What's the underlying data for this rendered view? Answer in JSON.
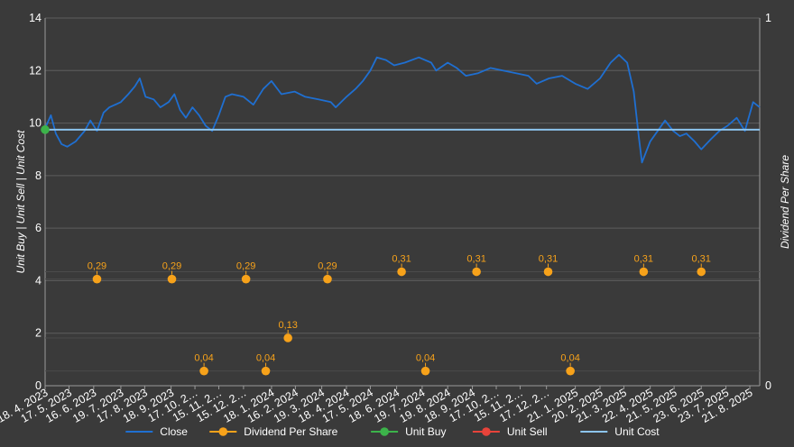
{
  "chart_data": {
    "type": "line",
    "xlabel": "",
    "ylabel": "Unit Buy | Unit Sell | Unit Cost",
    "y2label": "Dividend Per Share",
    "ylim": [
      0,
      14
    ],
    "y_ticks": [
      0,
      2,
      4,
      6,
      8,
      10,
      12,
      14
    ],
    "y2lim": [
      0,
      1
    ],
    "y2_ticks": [
      0,
      1
    ],
    "x_range": [
      "2023-04-18",
      "2025-09-02"
    ],
    "x_tick_labels": [
      "18. 4. 2023",
      "17. 5. 2023",
      "16. 6. 2023",
      "19. 7. 2023",
      "17. 8. 2023",
      "18. 9. 2023",
      "17. 10. 2…",
      "15. 11. 2…",
      "15. 12. 2…",
      "18. 1. 2024",
      "16. 2. 2024",
      "19. 3. 2024",
      "18. 4. 2024",
      "17. 5. 2024",
      "18. 6. 2024",
      "19. 7. 2024",
      "19. 8. 2024",
      "18. 9. 2024",
      "17. 10. 2…",
      "15. 11. 2…",
      "17. 12. 2…",
      "21. 1. 2025",
      "20. 2. 2025",
      "21. 3. 2025",
      "22. 4. 2025",
      "21. 5. 2025",
      "23. 6. 2025",
      "23. 7. 2025",
      "21. 8. 2025"
    ],
    "x_tick_dates": [
      "2023-04-18",
      "2023-05-17",
      "2023-06-16",
      "2023-07-19",
      "2023-08-17",
      "2023-09-18",
      "2023-10-17",
      "2023-11-15",
      "2023-12-15",
      "2024-01-18",
      "2024-02-16",
      "2024-03-19",
      "2024-04-18",
      "2024-05-17",
      "2024-06-18",
      "2024-07-19",
      "2024-08-19",
      "2024-09-18",
      "2024-10-17",
      "2024-11-15",
      "2024-12-17",
      "2025-01-21",
      "2025-02-20",
      "2025-03-21",
      "2025-04-22",
      "2025-05-21",
      "2025-06-23",
      "2025-07-23",
      "2025-08-21"
    ],
    "grid": true,
    "legend_position": "bottom",
    "series": [
      {
        "name": "Close",
        "color": "#1f6fd1",
        "points": [
          [
            "2023-04-18",
            9.8
          ],
          [
            "2023-04-25",
            10.3
          ],
          [
            "2023-05-01",
            9.6
          ],
          [
            "2023-05-08",
            9.2
          ],
          [
            "2023-05-15",
            9.1
          ],
          [
            "2023-05-25",
            9.3
          ],
          [
            "2023-06-05",
            9.7
          ],
          [
            "2023-06-12",
            10.1
          ],
          [
            "2023-06-20",
            9.7
          ],
          [
            "2023-06-28",
            10.4
          ],
          [
            "2023-07-05",
            10.6
          ],
          [
            "2023-07-19",
            10.8
          ],
          [
            "2023-07-28",
            11.1
          ],
          [
            "2023-08-05",
            11.4
          ],
          [
            "2023-08-11",
            11.7
          ],
          [
            "2023-08-18",
            11.0
          ],
          [
            "2023-08-28",
            10.9
          ],
          [
            "2023-09-05",
            10.6
          ],
          [
            "2023-09-15",
            10.8
          ],
          [
            "2023-09-22",
            11.1
          ],
          [
            "2023-09-29",
            10.5
          ],
          [
            "2023-10-06",
            10.2
          ],
          [
            "2023-10-14",
            10.6
          ],
          [
            "2023-10-22",
            10.3
          ],
          [
            "2023-10-30",
            9.9
          ],
          [
            "2023-11-07",
            9.7
          ],
          [
            "2023-11-15",
            10.3
          ],
          [
            "2023-11-23",
            11.0
          ],
          [
            "2023-12-01",
            11.1
          ],
          [
            "2023-12-15",
            11.0
          ],
          [
            "2023-12-27",
            10.7
          ],
          [
            "2024-01-08",
            11.3
          ],
          [
            "2024-01-18",
            11.6
          ],
          [
            "2024-01-30",
            11.1
          ],
          [
            "2024-02-15",
            11.2
          ],
          [
            "2024-02-28",
            11.0
          ],
          [
            "2024-03-15",
            10.9
          ],
          [
            "2024-03-30",
            10.8
          ],
          [
            "2024-04-05",
            10.6
          ],
          [
            "2024-04-18",
            11.0
          ],
          [
            "2024-04-29",
            11.3
          ],
          [
            "2024-05-08",
            11.6
          ],
          [
            "2024-05-17",
            12.0
          ],
          [
            "2024-05-25",
            12.5
          ],
          [
            "2024-06-05",
            12.4
          ],
          [
            "2024-06-15",
            12.2
          ],
          [
            "2024-06-28",
            12.3
          ],
          [
            "2024-07-15",
            12.5
          ],
          [
            "2024-07-30",
            12.3
          ],
          [
            "2024-08-05",
            12.0
          ],
          [
            "2024-08-19",
            12.3
          ],
          [
            "2024-08-30",
            12.1
          ],
          [
            "2024-09-10",
            11.8
          ],
          [
            "2024-09-25",
            11.9
          ],
          [
            "2024-10-10",
            12.1
          ],
          [
            "2024-10-25",
            12.0
          ],
          [
            "2024-11-10",
            11.9
          ],
          [
            "2024-11-25",
            11.8
          ],
          [
            "2024-12-05",
            11.5
          ],
          [
            "2024-12-20",
            11.7
          ],
          [
            "2025-01-05",
            11.8
          ],
          [
            "2025-01-21",
            11.5
          ],
          [
            "2025-02-05",
            11.3
          ],
          [
            "2025-02-20",
            11.7
          ],
          [
            "2025-03-05",
            12.3
          ],
          [
            "2025-03-15",
            12.6
          ],
          [
            "2025-03-25",
            12.3
          ],
          [
            "2025-04-02",
            11.2
          ],
          [
            "2025-04-08",
            9.5
          ],
          [
            "2025-04-12",
            8.5
          ],
          [
            "2025-04-22",
            9.3
          ],
          [
            "2025-05-01",
            9.7
          ],
          [
            "2025-05-10",
            10.1
          ],
          [
            "2025-05-20",
            9.7
          ],
          [
            "2025-05-28",
            9.5
          ],
          [
            "2025-06-05",
            9.6
          ],
          [
            "2025-06-15",
            9.3
          ],
          [
            "2025-06-23",
            9.0
          ],
          [
            "2025-07-05",
            9.4
          ],
          [
            "2025-07-15",
            9.7
          ],
          [
            "2025-07-25",
            9.9
          ],
          [
            "2025-08-05",
            10.2
          ],
          [
            "2025-08-15",
            9.7
          ],
          [
            "2025-08-25",
            10.8
          ],
          [
            "2025-09-02",
            10.6
          ]
        ]
      },
      {
        "name": "Dividend Per Share",
        "color": "#f7a21a",
        "points": [
          [
            "2023-06-20",
            0.29
          ],
          [
            "2023-09-19",
            0.29
          ],
          [
            "2023-10-28",
            0.04
          ],
          [
            "2023-12-18",
            0.29
          ],
          [
            "2024-01-11",
            0.04
          ],
          [
            "2024-02-07",
            0.13
          ],
          [
            "2024-03-26",
            0.29
          ],
          [
            "2024-06-24",
            0.31
          ],
          [
            "2024-07-23",
            0.04
          ],
          [
            "2024-09-23",
            0.31
          ],
          [
            "2024-12-19",
            0.31
          ],
          [
            "2025-01-15",
            0.04
          ],
          [
            "2025-04-14",
            0.31
          ],
          [
            "2025-06-23",
            0.31
          ]
        ],
        "labels": [
          "0,29",
          "0,29",
          "0,04",
          "0,29",
          "0,04",
          "0,13",
          "0,29",
          "0,31",
          "0,04",
          "0,31",
          "0,31",
          "0,04",
          "0,31",
          "0,31"
        ]
      },
      {
        "name": "Unit Buy",
        "color": "#3cb34a",
        "points": [
          [
            "2023-04-18",
            9.75
          ]
        ]
      },
      {
        "name": "Unit Sell",
        "color": "#e8433a",
        "points": []
      },
      {
        "name": "Unit Cost",
        "color": "#8cc4ec",
        "points": [
          [
            "2023-04-18",
            9.75
          ],
          [
            "2025-09-02",
            9.75
          ]
        ]
      }
    ]
  }
}
